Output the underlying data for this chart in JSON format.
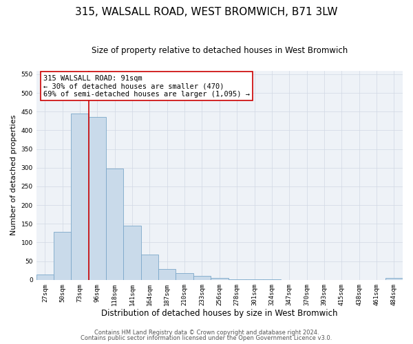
{
  "title": "315, WALSALL ROAD, WEST BROMWICH, B71 3LW",
  "subtitle": "Size of property relative to detached houses in West Bromwich",
  "xlabel": "Distribution of detached houses by size in West Bromwich",
  "ylabel": "Number of detached properties",
  "bar_labels": [
    "27sqm",
    "50sqm",
    "73sqm",
    "96sqm",
    "118sqm",
    "141sqm",
    "164sqm",
    "187sqm",
    "210sqm",
    "233sqm",
    "256sqm",
    "278sqm",
    "301sqm",
    "324sqm",
    "347sqm",
    "370sqm",
    "393sqm",
    "415sqm",
    "438sqm",
    "461sqm",
    "484sqm"
  ],
  "bar_values": [
    15,
    128,
    445,
    435,
    297,
    145,
    68,
    29,
    18,
    10,
    6,
    2,
    1,
    1,
    0,
    0,
    0,
    0,
    0,
    0,
    5
  ],
  "bar_color": "#c9daea",
  "bar_edge_color": "#7ba7c9",
  "bar_edge_width": 0.6,
  "vline_color": "#cc0000",
  "vline_x_idx": 2.5,
  "annotation_box_text": "315 WALSALL ROAD: 91sqm\n← 30% of detached houses are smaller (470)\n69% of semi-detached houses are larger (1,095) →",
  "ylim": [
    0,
    560
  ],
  "yticks": [
    0,
    50,
    100,
    150,
    200,
    250,
    300,
    350,
    400,
    450,
    500,
    550
  ],
  "grid_color": "#d0d8e4",
  "background_color": "#eef2f7",
  "footer_line1": "Contains HM Land Registry data © Crown copyright and database right 2024.",
  "footer_line2": "Contains public sector information licensed under the Open Government Licence v3.0.",
  "title_fontsize": 11,
  "subtitle_fontsize": 8.5,
  "xlabel_fontsize": 8.5,
  "ylabel_fontsize": 8,
  "tick_fontsize": 6.5,
  "footer_fontsize": 6,
  "ann_fontsize": 7.5
}
